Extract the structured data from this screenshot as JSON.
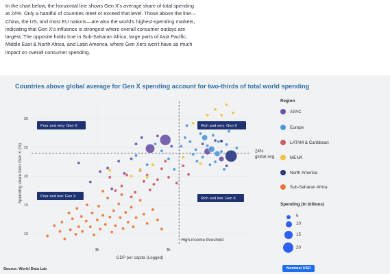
{
  "intro": {
    "lines": [
      "In the chart below, the horizontal line shows Gen X's average share of total spending",
      "at 24%. Only a handful of countries meet or exceed that level. Those above the line—",
      "China, the US, and most EU nations—are also the world's highest-spending markets,",
      "indicating that Gen X's influence is strongest where overall consumer outlays are",
      "largest. The opposite holds true in Sub-Saharan Africa, large parts of Asia Pacific,",
      "Middle East & North Africa, and Latin America, where Gen Xers won't have as much",
      "impact on overall consumer spending."
    ]
  },
  "legend": {
    "region_title": "Region",
    "regions": [
      {
        "label": "APAC",
        "color": "#6b52a6"
      },
      {
        "label": "Europe",
        "color": "#4d96dc"
      },
      {
        "label": "LATAM & Caribbean",
        "color": "#cd5a63"
      },
      {
        "label": "MENA",
        "color": "#f2c23a"
      },
      {
        "label": "North America",
        "color": "#283a80"
      },
      {
        "label": "Sub-Saharan Africa",
        "color": "#e8763c"
      }
    ],
    "size_title": "Spending (in billions)",
    "sizes": [
      {
        "label": "5",
        "value": 5
      },
      {
        "label": "10",
        "value": 10
      },
      {
        "label": "15",
        "value": 15
      },
      {
        "label": "20",
        "value": 20
      }
    ]
  },
  "source": "Source: World Data Lab",
  "badge": "Nominal USD",
  "chart_data": {
    "type": "scatter",
    "title": "Countries above global average for Gen X spending account for two-thirds of total world spending",
    "xlabel": "GDP per capita (Logged)",
    "ylabel": "Spending share from Gen X (%)",
    "x_scale": "log",
    "xlim": [
      0.12,
      130
    ],
    "ylim": [
      8,
      33
    ],
    "x_ticks": [
      {
        "value": 1,
        "label": "$k"
      },
      {
        "value": 10,
        "label": "$k"
      }
    ],
    "y_ticks": [
      10,
      15,
      20,
      25,
      30
    ],
    "reference_lines": [
      {
        "axis": "y",
        "value": 24,
        "label_lines": [
          "24%",
          "global avg."
        ]
      },
      {
        "axis": "x",
        "value": 14,
        "label": "High-income threshold"
      }
    ],
    "quadrant_labels": [
      {
        "text": "Poor and very: Gen X",
        "position": "top-left"
      },
      {
        "text": "Rich and very: Gen X",
        "position": "top-right"
      },
      {
        "text": "Poor and low: Gen X",
        "position": "bottom-left"
      },
      {
        "text": "Rich and low: Gen X",
        "position": "bottom-right"
      }
    ],
    "series": [
      {
        "name": "APAC",
        "points": [
          {
            "x": 0.55,
            "y": 22.3
          },
          {
            "x": 0.8,
            "y": 19.0
          },
          {
            "x": 1.1,
            "y": 20.8
          },
          {
            "x": 1.4,
            "y": 21.4
          },
          {
            "x": 1.6,
            "y": 17.8
          },
          {
            "x": 2.0,
            "y": 22.6
          },
          {
            "x": 2.4,
            "y": 20.5
          },
          {
            "x": 3.0,
            "y": 23.0
          },
          {
            "x": 3.5,
            "y": 25.6
          },
          {
            "x": 4.2,
            "y": 26.7
          },
          {
            "x": 5.5,
            "y": 24.8,
            "size": 14
          },
          {
            "x": 7.0,
            "y": 27.0
          },
          {
            "x": 9.0,
            "y": 26.3,
            "size": 18
          },
          {
            "x": 11.0,
            "y": 25.2
          },
          {
            "x": 30.0,
            "y": 25.6
          },
          {
            "x": 35.0,
            "y": 24.3,
            "size": 8
          },
          {
            "x": 45.0,
            "y": 26.2
          },
          {
            "x": 55.0,
            "y": 23.0,
            "size": 5
          },
          {
            "x": 65.0,
            "y": 21.8
          }
        ]
      },
      {
        "name": "Europe",
        "points": [
          {
            "x": 3.5,
            "y": 23.6
          },
          {
            "x": 5.0,
            "y": 22.0
          },
          {
            "x": 6.5,
            "y": 25.6
          },
          {
            "x": 8.0,
            "y": 24.4
          },
          {
            "x": 10.0,
            "y": 23.0
          },
          {
            "x": 12.0,
            "y": 21.2
          },
          {
            "x": 15.0,
            "y": 25.2
          },
          {
            "x": 17.0,
            "y": 26.7
          },
          {
            "x": 18.0,
            "y": 28.8
          },
          {
            "x": 20.0,
            "y": 26.0
          },
          {
            "x": 22.0,
            "y": 23.8
          },
          {
            "x": 24.0,
            "y": 24.6
          },
          {
            "x": 25.0,
            "y": 22.6
          },
          {
            "x": 28.0,
            "y": 27.4
          },
          {
            "x": 30.0,
            "y": 23.3
          },
          {
            "x": 32.0,
            "y": 26.7,
            "size": 6
          },
          {
            "x": 35.0,
            "y": 25.3
          },
          {
            "x": 38.0,
            "y": 22.0
          },
          {
            "x": 40.0,
            "y": 24.7,
            "size": 7
          },
          {
            "x": 42.0,
            "y": 27.1
          },
          {
            "x": 45.0,
            "y": 22.5
          },
          {
            "x": 48.0,
            "y": 23.9,
            "size": 6
          },
          {
            "x": 50.0,
            "y": 26.0
          },
          {
            "x": 55.0,
            "y": 24.3
          },
          {
            "x": 60.0,
            "y": 21.2
          },
          {
            "x": 65.0,
            "y": 25.5
          },
          {
            "x": 70.0,
            "y": 27.8
          },
          {
            "x": 80.0,
            "y": 22.8
          },
          {
            "x": 90.0,
            "y": 24.9
          }
        ]
      },
      {
        "name": "LATAM & Caribbean",
        "points": [
          {
            "x": 1.5,
            "y": 19.8
          },
          {
            "x": 1.8,
            "y": 17.5
          },
          {
            "x": 2.2,
            "y": 18.3
          },
          {
            "x": 2.6,
            "y": 20.2
          },
          {
            "x": 3.0,
            "y": 16.4
          },
          {
            "x": 3.4,
            "y": 17.2
          },
          {
            "x": 4.0,
            "y": 21.0
          },
          {
            "x": 4.5,
            "y": 19.1
          },
          {
            "x": 5.0,
            "y": 20.2
          },
          {
            "x": 5.5,
            "y": 17.6
          },
          {
            "x": 6.2,
            "y": 18.6
          },
          {
            "x": 7.0,
            "y": 19.4
          },
          {
            "x": 8.0,
            "y": 21.3
          },
          {
            "x": 9.0,
            "y": 22.6
          },
          {
            "x": 10.0,
            "y": 19.8
          },
          {
            "x": 13.0,
            "y": 18.8
          },
          {
            "x": 16.0,
            "y": 21.8
          },
          {
            "x": 19.0,
            "y": 20.3
          }
        ]
      },
      {
        "name": "MENA",
        "points": [
          {
            "x": 1.5,
            "y": 21.0
          },
          {
            "x": 3.0,
            "y": 20.0
          },
          {
            "x": 4.0,
            "y": 21.2
          },
          {
            "x": 5.0,
            "y": 19.8
          },
          {
            "x": 6.0,
            "y": 22.0
          },
          {
            "x": 16.0,
            "y": 23.3
          },
          {
            "x": 22.0,
            "y": 29.2
          },
          {
            "x": 28.0,
            "y": 22.2
          },
          {
            "x": 35.0,
            "y": 30.6
          },
          {
            "x": 40.0,
            "y": 28.5
          },
          {
            "x": 45.0,
            "y": 31.6
          },
          {
            "x": 55.0,
            "y": 30.6
          },
          {
            "x": 65.0,
            "y": 32.4
          },
          {
            "x": 80.0,
            "y": 31.0
          }
        ]
      },
      {
        "name": "North America",
        "points": [
          {
            "x": 55.0,
            "y": 26.1
          },
          {
            "x": 75.0,
            "y": 23.5,
            "size": 20
          }
        ]
      },
      {
        "name": "Sub-Saharan Africa",
        "points": [
          {
            "x": 0.2,
            "y": 9.6
          },
          {
            "x": 0.25,
            "y": 11.4
          },
          {
            "x": 0.3,
            "y": 10.4
          },
          {
            "x": 0.32,
            "y": 12.0
          },
          {
            "x": 0.35,
            "y": 9.1
          },
          {
            "x": 0.4,
            "y": 13.6
          },
          {
            "x": 0.42,
            "y": 10.7
          },
          {
            "x": 0.45,
            "y": 12.6
          },
          {
            "x": 0.5,
            "y": 9.9
          },
          {
            "x": 0.52,
            "y": 14.4
          },
          {
            "x": 0.55,
            "y": 11.2
          },
          {
            "x": 0.6,
            "y": 13.0
          },
          {
            "x": 0.62,
            "y": 10.4
          },
          {
            "x": 0.7,
            "y": 12.2
          },
          {
            "x": 0.72,
            "y": 15.0
          },
          {
            "x": 0.8,
            "y": 11.2
          },
          {
            "x": 0.85,
            "y": 13.6
          },
          {
            "x": 0.9,
            "y": 9.8
          },
          {
            "x": 1.0,
            "y": 12.4
          },
          {
            "x": 1.05,
            "y": 14.8
          },
          {
            "x": 1.1,
            "y": 10.8
          },
          {
            "x": 1.2,
            "y": 13.2
          },
          {
            "x": 1.3,
            "y": 11.6
          },
          {
            "x": 1.4,
            "y": 16.2
          },
          {
            "x": 1.5,
            "y": 12.9
          },
          {
            "x": 1.6,
            "y": 10.3
          },
          {
            "x": 1.7,
            "y": 14.0
          },
          {
            "x": 1.8,
            "y": 11.4
          },
          {
            "x": 2.0,
            "y": 15.2
          },
          {
            "x": 2.1,
            "y": 12.8
          },
          {
            "x": 2.3,
            "y": 10.9
          },
          {
            "x": 2.5,
            "y": 13.7
          },
          {
            "x": 2.7,
            "y": 12.0
          },
          {
            "x": 3.0,
            "y": 14.6
          },
          {
            "x": 3.2,
            "y": 11.2
          },
          {
            "x": 3.5,
            "y": 12.8
          },
          {
            "x": 4.0,
            "y": 15.8
          },
          {
            "x": 4.5,
            "y": 13.4
          },
          {
            "x": 5.0,
            "y": 11.8
          },
          {
            "x": 6.0,
            "y": 14.2
          },
          {
            "x": 7.0,
            "y": 12.4
          },
          {
            "x": 8.0,
            "y": 10.8
          },
          {
            "x": 1.2,
            "y": 17.4
          },
          {
            "x": 2.2,
            "y": 16.8
          }
        ]
      }
    ]
  }
}
